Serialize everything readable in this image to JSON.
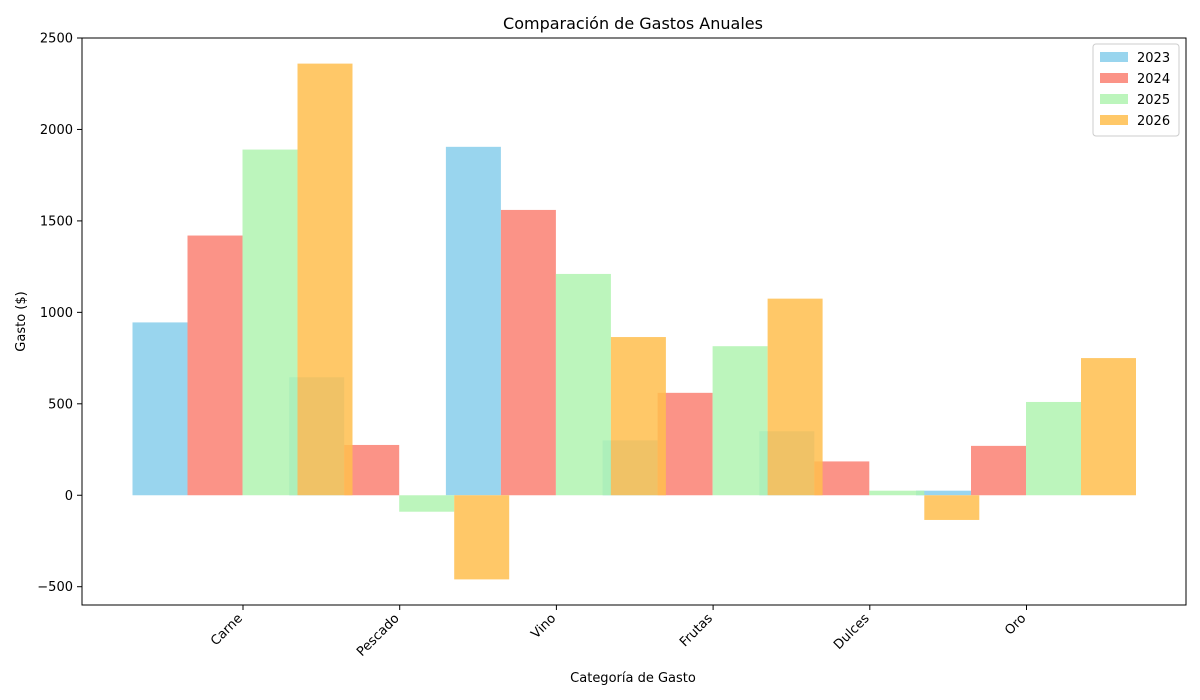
{
  "chart_data": {
    "type": "bar",
    "title": "Comparación de Gastos Anuales",
    "xlabel": "Categoría de Gasto",
    "ylabel": "Gasto ($)",
    "ylim": [
      -600,
      2500
    ],
    "yticks": [
      -500,
      0,
      500,
      1000,
      1500,
      2000,
      2500
    ],
    "yticklabels": [
      "−500",
      "0",
      "500",
      "1000",
      "1500",
      "2000",
      "2500"
    ],
    "categories": [
      "Carne",
      "Pescado",
      "Vino",
      "Frutas",
      "Dulces",
      "Oro"
    ],
    "grid": false,
    "legend_position": "top-right",
    "series": [
      {
        "name": "2023",
        "color": "#87ceeb",
        "values": [
          945,
          645,
          1905,
          300,
          350,
          25
        ]
      },
      {
        "name": "2024",
        "color": "#fa8072",
        "values": [
          1420,
          275,
          1560,
          560,
          185,
          270
        ]
      },
      {
        "name": "2025",
        "color": "#b0f3b0",
        "values": [
          1890,
          -90,
          1210,
          815,
          25,
          510
        ]
      },
      {
        "name": "2026",
        "color": "#ffbe4d",
        "values": [
          2360,
          -460,
          865,
          1075,
          -135,
          750
        ]
      }
    ]
  }
}
